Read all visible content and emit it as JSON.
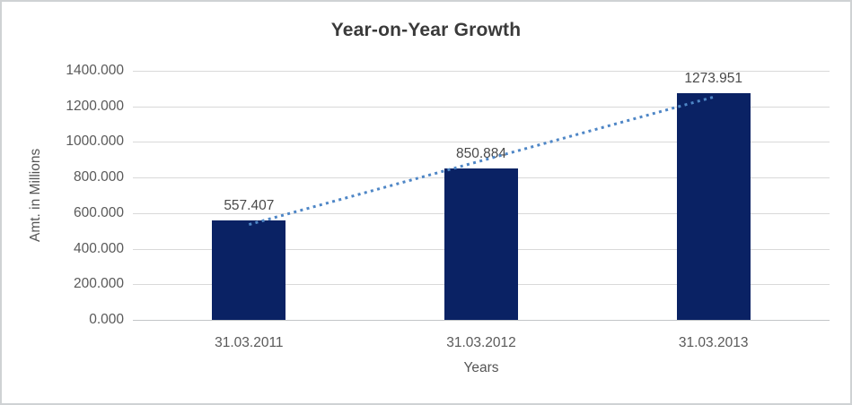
{
  "chart_data": {
    "type": "bar",
    "title": "Year-on-Year Growth",
    "xlabel": "Years",
    "ylabel": "Amt. in Millions",
    "categories": [
      "31.03.2011",
      "31.03.2012",
      "31.03.2013"
    ],
    "values": [
      557.407,
      850.884,
      1273.951
    ],
    "value_labels": [
      "557.407",
      "850.884",
      "1273.951"
    ],
    "ylim": [
      0,
      1400
    ],
    "ytick_step": 200,
    "ytick_labels": [
      "0.000",
      "200.000",
      "400.000",
      "600.000",
      "800.000",
      "1000.000",
      "1200.000",
      "1400.000"
    ],
    "grid": true,
    "legend_position": "none",
    "trendline": {
      "type": "linear",
      "style": "dotted"
    },
    "colors": {
      "bar": "#0a2264",
      "trendline": "#4e86c6",
      "gridline": "#d9d9d9",
      "axis_line": "#c3c6c8",
      "title_text": "#3a3a3a",
      "tick_text": "#595959",
      "data_label_text": "#494949"
    }
  }
}
